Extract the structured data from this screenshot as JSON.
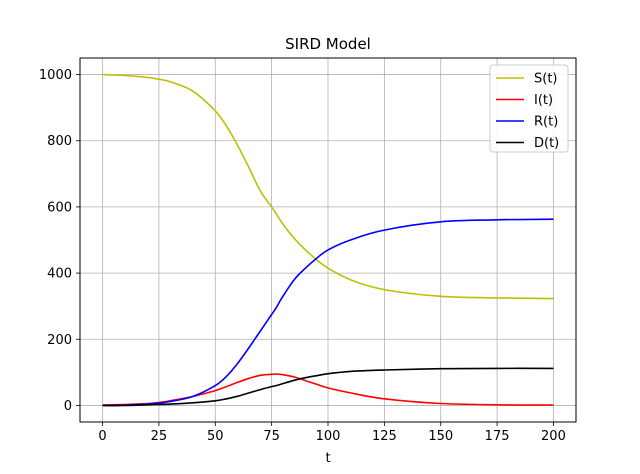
{
  "chart_data": {
    "type": "line",
    "title": "SIRD Model",
    "xlabel": "t",
    "ylabel": "",
    "xlim": [
      -10,
      210
    ],
    "ylim": [
      -50,
      1050
    ],
    "xticks": [
      0,
      25,
      50,
      75,
      100,
      125,
      150,
      175,
      200
    ],
    "yticks": [
      0,
      200,
      400,
      600,
      800,
      1000
    ],
    "grid": true,
    "legend_position": "top-right",
    "x": [
      0,
      10,
      20,
      25,
      30,
      40,
      50,
      55,
      60,
      65,
      70,
      75,
      77,
      80,
      85,
      90,
      95,
      100,
      110,
      125,
      150,
      175,
      200
    ],
    "series": [
      {
        "name": "S(t)",
        "color": "#bfbf00",
        "values": [
          1000,
          997,
          991,
          986,
          978,
          950,
          890,
          844,
          785,
          718,
          648,
          600,
          580,
          548,
          505,
          470,
          440,
          415,
          380,
          350,
          330,
          325,
          323
        ]
      },
      {
        "name": "I(t)",
        "color": "#ff0000",
        "values": [
          1,
          3,
          6,
          9,
          14,
          27,
          45,
          57,
          70,
          82,
          91,
          94,
          95,
          93,
          86,
          75,
          64,
          53,
          38,
          20,
          6,
          2,
          1
        ]
      },
      {
        "name": "R(t)",
        "color": "#0000ff",
        "values": [
          0,
          1,
          4,
          7,
          12,
          27,
          60,
          88,
          128,
          175,
          225,
          275,
          295,
          330,
          380,
          415,
          445,
          470,
          500,
          530,
          555,
          561,
          563
        ]
      },
      {
        "name": "D(t)",
        "color": "#000000",
        "values": [
          0,
          0,
          2,
          3,
          4,
          8,
          14,
          20,
          28,
          38,
          48,
          57,
          60,
          66,
          76,
          84,
          90,
          96,
          103,
          107,
          111,
          112,
          112
        ]
      }
    ]
  }
}
